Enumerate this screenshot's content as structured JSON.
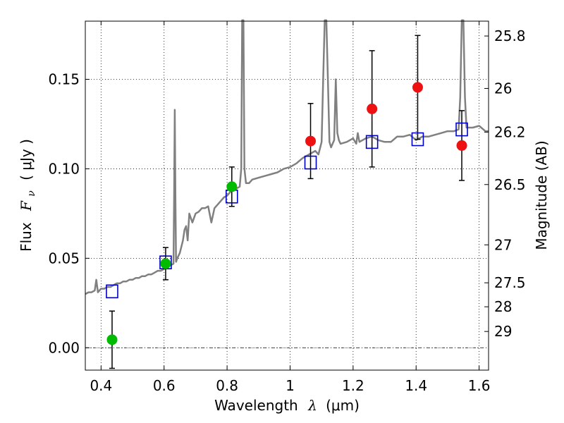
{
  "chart_data": {
    "type": "scatter",
    "xlabel_prefix": "Wavelength",
    "xlabel_symbol": "λ",
    "xlabel_unit": "(μm)",
    "ylabel_prefix": "Flux",
    "ylabel_symbol": "F",
    "ylabel_subscript": "ν",
    "ylabel_unit": "( μJy )",
    "y2label": "Magnitude (AB)",
    "xlim": [
      0.35,
      1.63
    ],
    "ylim": [
      -0.0125,
      0.1825
    ],
    "xticks": [
      0.4,
      0.6,
      0.8,
      1.0,
      1.2,
      1.4,
      1.6
    ],
    "xtick_labels": [
      "0.4",
      "0.6",
      "0.8",
      "1",
      "1.2",
      "1.4",
      "1.6"
    ],
    "yticks": [
      0.0,
      0.05,
      0.1,
      0.15
    ],
    "ytick_labels": [
      "0.00",
      "0.05",
      "0.10",
      "0.15"
    ],
    "mag_ticks": [
      {
        "flux": 0.1742,
        "label": "25.8"
      },
      {
        "flux": 0.1449,
        "label": "26"
      },
      {
        "flux": 0.1205,
        "label": "26.2"
      },
      {
        "flux": 0.0912,
        "label": "26.5"
      },
      {
        "flux": 0.0575,
        "label": "27"
      },
      {
        "flux": 0.0363,
        "label": "27.5"
      },
      {
        "flux": 0.0229,
        "label": "28"
      },
      {
        "flux": 0.0091,
        "label": "29"
      }
    ],
    "grid": true,
    "zero_line": true,
    "colors": {
      "model": "#808080",
      "model_box": "#0000cc",
      "detection_green": "#00bb00",
      "detection_red": "#ee1111",
      "errorbar": "#000000"
    },
    "series": [
      {
        "name": "model spectrum",
        "kind": "line",
        "x": [
          0.35,
          0.36,
          0.37,
          0.38,
          0.385,
          0.39,
          0.4,
          0.41,
          0.42,
          0.43,
          0.44,
          0.45,
          0.46,
          0.47,
          0.48,
          0.49,
          0.5,
          0.51,
          0.52,
          0.53,
          0.54,
          0.55,
          0.56,
          0.57,
          0.58,
          0.59,
          0.6,
          0.61,
          0.62,
          0.63,
          0.632,
          0.634,
          0.636,
          0.638,
          0.642,
          0.65,
          0.66,
          0.665,
          0.67,
          0.675,
          0.68,
          0.69,
          0.7,
          0.71,
          0.72,
          0.73,
          0.74,
          0.75,
          0.76,
          0.77,
          0.78,
          0.79,
          0.8,
          0.81,
          0.82,
          0.83,
          0.84,
          0.845,
          0.848,
          0.85,
          0.852,
          0.855,
          0.86,
          0.87,
          0.88,
          0.9,
          0.92,
          0.94,
          0.96,
          0.98,
          1.0,
          1.02,
          1.04,
          1.06,
          1.08,
          1.09,
          1.1,
          1.105,
          1.11,
          1.115,
          1.12,
          1.125,
          1.13,
          1.14,
          1.145,
          1.15,
          1.155,
          1.16,
          1.18,
          1.2,
          1.21,
          1.215,
          1.22,
          1.24,
          1.26,
          1.28,
          1.3,
          1.32,
          1.34,
          1.36,
          1.38,
          1.4,
          1.42,
          1.44,
          1.46,
          1.48,
          1.5,
          1.52,
          1.535,
          1.54,
          1.545,
          1.55,
          1.555,
          1.56,
          1.58,
          1.6,
          1.62,
          1.63
        ],
        "y": [
          0.03,
          0.031,
          0.031,
          0.032,
          0.038,
          0.031,
          0.033,
          0.033,
          0.034,
          0.034,
          0.035,
          0.036,
          0.036,
          0.037,
          0.037,
          0.038,
          0.038,
          0.039,
          0.039,
          0.04,
          0.04,
          0.041,
          0.041,
          0.042,
          0.043,
          0.043,
          0.044,
          0.045,
          0.046,
          0.047,
          0.085,
          0.133,
          0.085,
          0.048,
          0.05,
          0.053,
          0.06,
          0.066,
          0.068,
          0.06,
          0.075,
          0.07,
          0.075,
          0.076,
          0.078,
          0.078,
          0.079,
          0.07,
          0.078,
          0.08,
          0.082,
          0.084,
          0.085,
          0.087,
          0.088,
          0.089,
          0.09,
          0.1,
          0.183,
          0.183,
          0.183,
          0.1,
          0.092,
          0.092,
          0.094,
          0.095,
          0.096,
          0.097,
          0.098,
          0.1,
          0.101,
          0.103,
          0.106,
          0.108,
          0.11,
          0.108,
          0.115,
          0.15,
          0.183,
          0.183,
          0.15,
          0.115,
          0.112,
          0.116,
          0.15,
          0.12,
          0.116,
          0.114,
          0.115,
          0.117,
          0.114,
          0.12,
          0.115,
          0.117,
          0.118,
          0.116,
          0.115,
          0.115,
          0.118,
          0.118,
          0.119,
          0.116,
          0.118,
          0.118,
          0.119,
          0.12,
          0.121,
          0.121,
          0.122,
          0.14,
          0.183,
          0.183,
          0.14,
          0.123,
          0.123,
          0.124,
          0.121,
          0.121
        ]
      },
      {
        "name": "model photometry",
        "kind": "open_square",
        "x": [
          0.435,
          0.605,
          0.815,
          1.065,
          1.26,
          1.405,
          1.545
        ],
        "y": [
          0.0315,
          0.0477,
          0.0845,
          0.1035,
          0.115,
          0.1165,
          0.122
        ]
      },
      {
        "name": "detections (green)",
        "kind": "filled_circle_errorbar",
        "x": [
          0.435,
          0.605,
          0.815
        ],
        "y": [
          0.0045,
          0.047,
          0.09
        ],
        "yerr": [
          0.016,
          0.009,
          0.011
        ]
      },
      {
        "name": "detections (red)",
        "kind": "filled_circle_errorbar",
        "x": [
          1.065,
          1.26,
          1.405,
          1.545
        ],
        "y": [
          0.1155,
          0.1335,
          0.1455,
          0.113
        ],
        "yerr": [
          0.021,
          0.0325,
          0.029,
          0.0195
        ]
      }
    ]
  }
}
